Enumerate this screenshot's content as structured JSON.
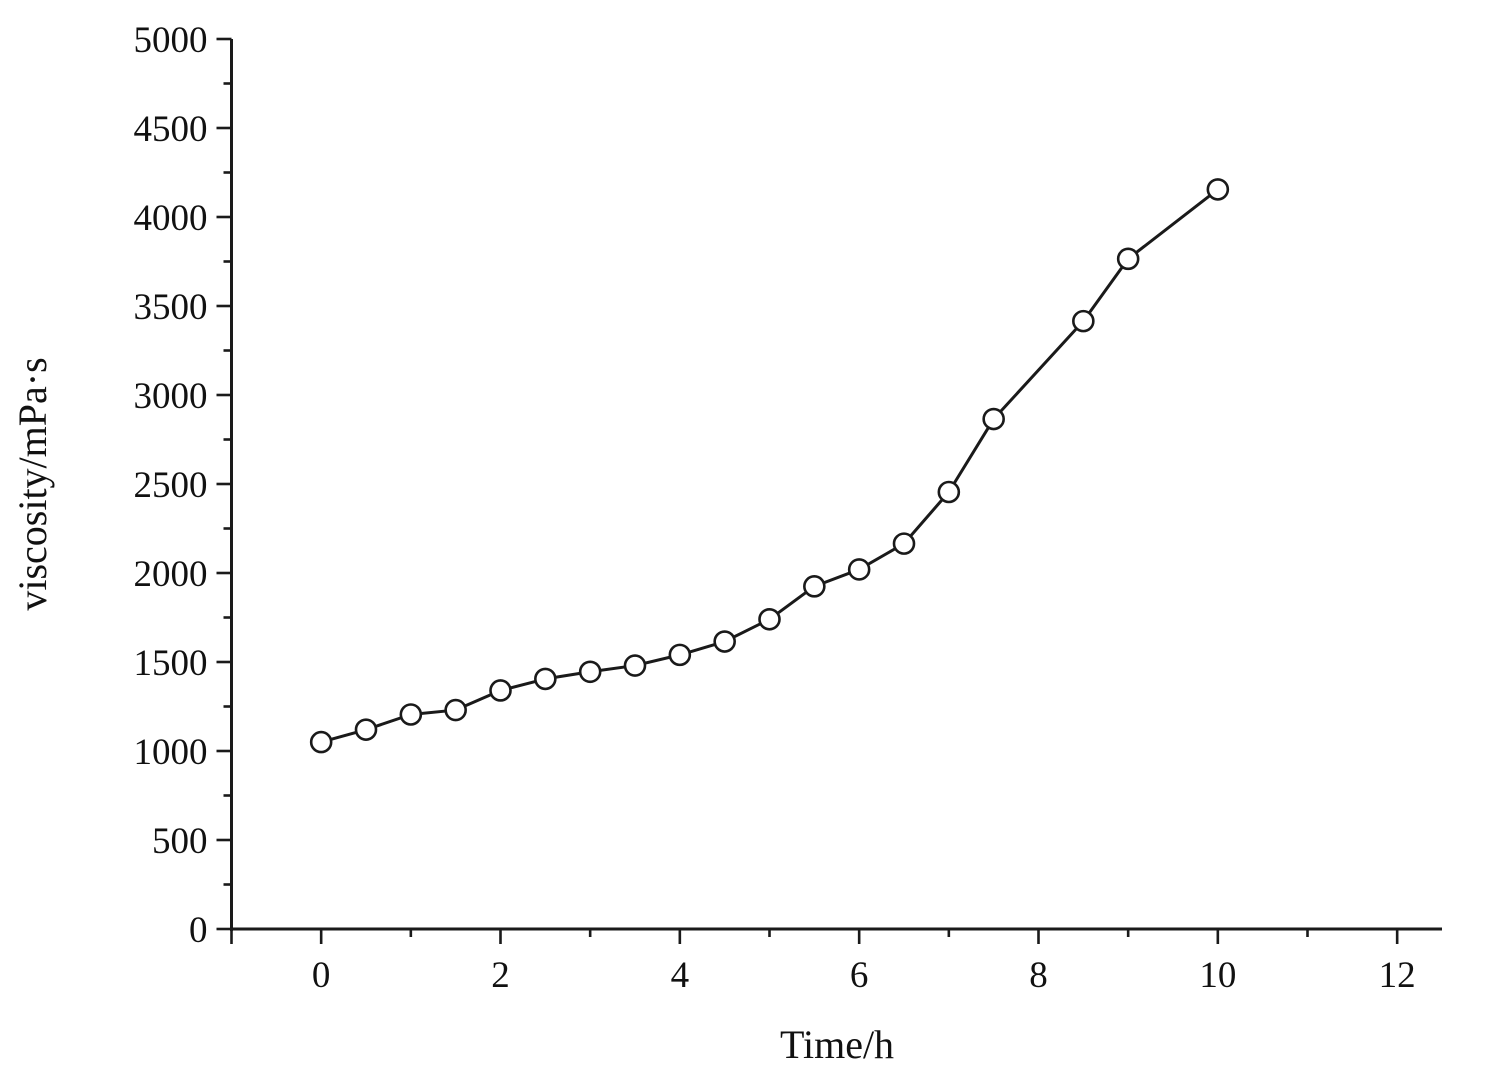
{
  "page": {
    "background": "#ffffff"
  },
  "chart_data": {
    "type": "line",
    "title": "",
    "xlabel": "Time/h",
    "ylabel": "viscosity/mPa·s",
    "xlim": [
      -1,
      12.5
    ],
    "ylim": [
      0,
      5000
    ],
    "grid": false,
    "legend": null,
    "line_color": "#1a1a1a",
    "marker": "open-circle",
    "marker_fill": "#ffffff",
    "text_color": "#111111",
    "x_major_ticks": [
      0,
      2,
      4,
      6,
      8,
      10,
      12
    ],
    "x_tick_labels": [
      "0",
      "2",
      "4",
      "6",
      "8",
      "10",
      "12"
    ],
    "x_minor_ticks": [
      1,
      3,
      5,
      7,
      9,
      11
    ],
    "y_major_ticks": [
      0,
      500,
      1000,
      1500,
      2000,
      2500,
      3000,
      3500,
      4000,
      4500,
      5000
    ],
    "y_tick_labels": [
      "0",
      "500",
      "1000",
      "1500",
      "2000",
      "2500",
      "3000",
      "3500",
      "4000",
      "4500",
      "5000"
    ],
    "y_minor_ticks": [
      250,
      750,
      1250,
      1750,
      2250,
      2750,
      3250,
      3750,
      4250,
      4750
    ],
    "series": [
      {
        "name": "viscosity",
        "x": [
          0,
          0.5,
          1,
          1.5,
          2,
          2.5,
          3,
          3.5,
          4,
          4.5,
          5,
          5.5,
          6,
          6.5,
          7,
          7.5,
          8.5,
          9,
          10
        ],
        "y": [
          1050,
          1120,
          1205,
          1230,
          1340,
          1405,
          1445,
          1480,
          1540,
          1615,
          1740,
          1925,
          2020,
          2165,
          2455,
          2865,
          3415,
          3765,
          4155
        ]
      }
    ]
  }
}
